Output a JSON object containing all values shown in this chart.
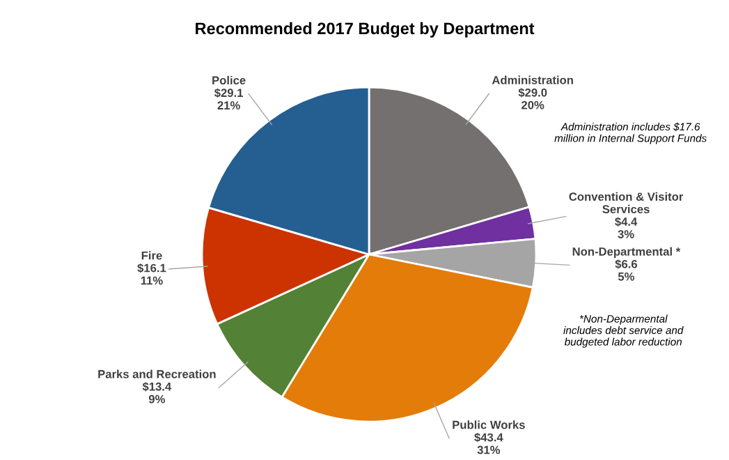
{
  "chart_data": {
    "type": "pie",
    "title": "Recommended 2017 Budget by Department",
    "categories": [
      "Administration",
      "Convention & Visitor\nServices",
      "Non-Departmental *",
      "Public Works",
      "Parks and Recreation",
      "Fire",
      "Police"
    ],
    "values": [
      29.0,
      4.4,
      6.6,
      43.4,
      13.4,
      16.1,
      29.1
    ],
    "value_labels": [
      "$29.0\n20%",
      "$4.4\n3%",
      "$6.6\n5%",
      "$43.4\n31%",
      "$13.4\n9%",
      "$16.1\n11%",
      "$29.1\n21%"
    ],
    "colors": [
      "#757070",
      "#7030a0",
      "#a5a5a5",
      "#e47c0a",
      "#538135",
      "#cc3300",
      "#255e91"
    ],
    "annotations": [
      "Administration includes $17.6\nmillion in Internal Support Funds",
      "*Non-Deparmental\nincludes debt service and\nbudgeted labor reduction"
    ],
    "legend": false
  }
}
